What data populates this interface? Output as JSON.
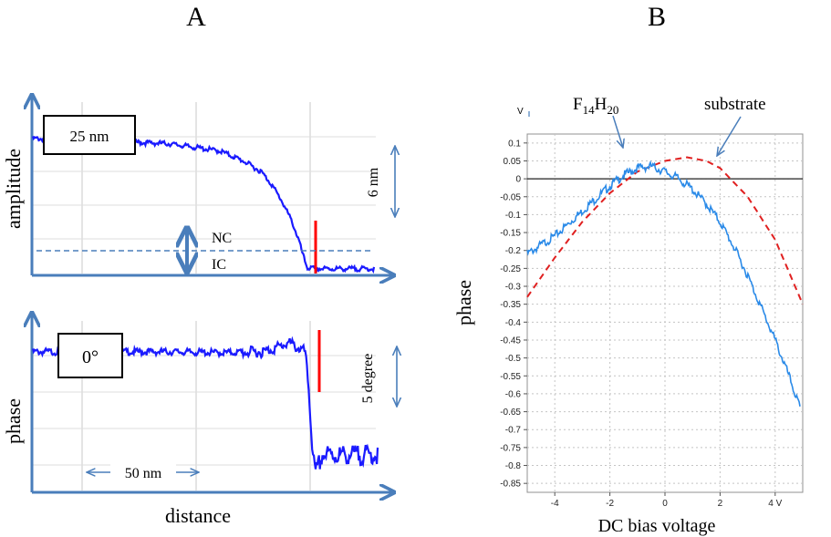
{
  "panel_labels": {
    "a": "A",
    "b": "B"
  },
  "colors": {
    "axis": "#4a7ebb",
    "trace_dark": "#1a1aff",
    "trace_light": "#2a8ae8",
    "marker": "#ff0000",
    "substrate": "#e02020"
  },
  "chart_data": [
    {
      "type": "line",
      "id": "A-amplitude",
      "ylabel": "amplitude",
      "box_label": "25 nm",
      "scale_label": "6 nm",
      "nc_label": "NC",
      "ic_label": "IC",
      "series": [
        {
          "name": "amplitude trace",
          "x": [
            0,
            20,
            40,
            55,
            62,
            67,
            70,
            73,
            76,
            78,
            79,
            80,
            80.5,
            83,
            86,
            92,
            100
          ],
          "y": [
            6.3,
            6.2,
            6.05,
            5.7,
            5.2,
            4.7,
            4.1,
            3.3,
            2.3,
            1.4,
            0.8,
            0.3,
            0.1,
            0.05,
            0.05,
            0.05,
            0.05
          ]
        }
      ],
      "xlim": [
        0,
        100
      ],
      "ylim": [
        0,
        7
      ]
    },
    {
      "type": "line",
      "id": "A-phase",
      "ylabel": "phase",
      "xlabel": "distance",
      "box_label": "0°",
      "scale_label": "5 degree",
      "distance_label": "50 nm",
      "series": [
        {
          "name": "phase trace",
          "x": [
            0,
            20,
            40,
            55,
            67,
            72,
            74,
            76,
            79,
            80,
            81,
            82,
            84,
            100
          ],
          "y": [
            5.0,
            5.0,
            5.0,
            4.95,
            5.0,
            5.3,
            5.5,
            5.3,
            5.0,
            3.0,
            0.0,
            -1.5,
            -0.5,
            -0.5
          ]
        }
      ],
      "xlim": [
        0,
        100
      ],
      "ylim": [
        -2,
        6.5
      ]
    },
    {
      "type": "line",
      "id": "B-phase-vs-bias",
      "xlabel": "DC bias voltage",
      "ylabel": "phase",
      "x_unit_label": "V",
      "y_unit_label": "V",
      "xtick_labels": [
        "-4",
        "-2",
        "0",
        "2",
        "4 V"
      ],
      "ytick_labels": [
        "0.1",
        "0.05",
        "0",
        "-0.05",
        "-0.1",
        "-0.15",
        "-0.2",
        "-0.25",
        "-0.3",
        "-0.35",
        "-0.4",
        "-0.45",
        "-0.5",
        "-0.55",
        "-0.6",
        "-0.65",
        "-0.7",
        "-0.75",
        "-0.8",
        "-0.85"
      ],
      "xlim": [
        -5,
        5
      ],
      "ylim": [
        -0.875,
        0.125
      ],
      "annotation_f14": {
        "main": "F",
        "sub1": "14",
        "h": "H",
        "sub2": "20"
      },
      "annotation_substrate": "substrate",
      "series": [
        {
          "name": "F14H20",
          "style": "solid",
          "x": [
            -5,
            -4,
            -3,
            -2,
            -1.5,
            -1,
            -0.5,
            0,
            0.5,
            1,
            1.5,
            2,
            2.5,
            3,
            3.5,
            4,
            4.5,
            4.9
          ],
          "y": [
            -0.21,
            -0.16,
            -0.09,
            -0.02,
            0.01,
            0.03,
            0.035,
            0.02,
            0.0,
            -0.03,
            -0.07,
            -0.12,
            -0.19,
            -0.27,
            -0.36,
            -0.45,
            -0.55,
            -0.64
          ]
        },
        {
          "name": "substrate",
          "style": "dashed",
          "x": [
            -5,
            -4,
            -3,
            -2,
            -1,
            0,
            0.8,
            1.5,
            2,
            3,
            4,
            5
          ],
          "y": [
            -0.33,
            -0.22,
            -0.12,
            -0.04,
            0.02,
            0.05,
            0.06,
            0.05,
            0.03,
            -0.05,
            -0.17,
            -0.35
          ]
        }
      ]
    }
  ]
}
